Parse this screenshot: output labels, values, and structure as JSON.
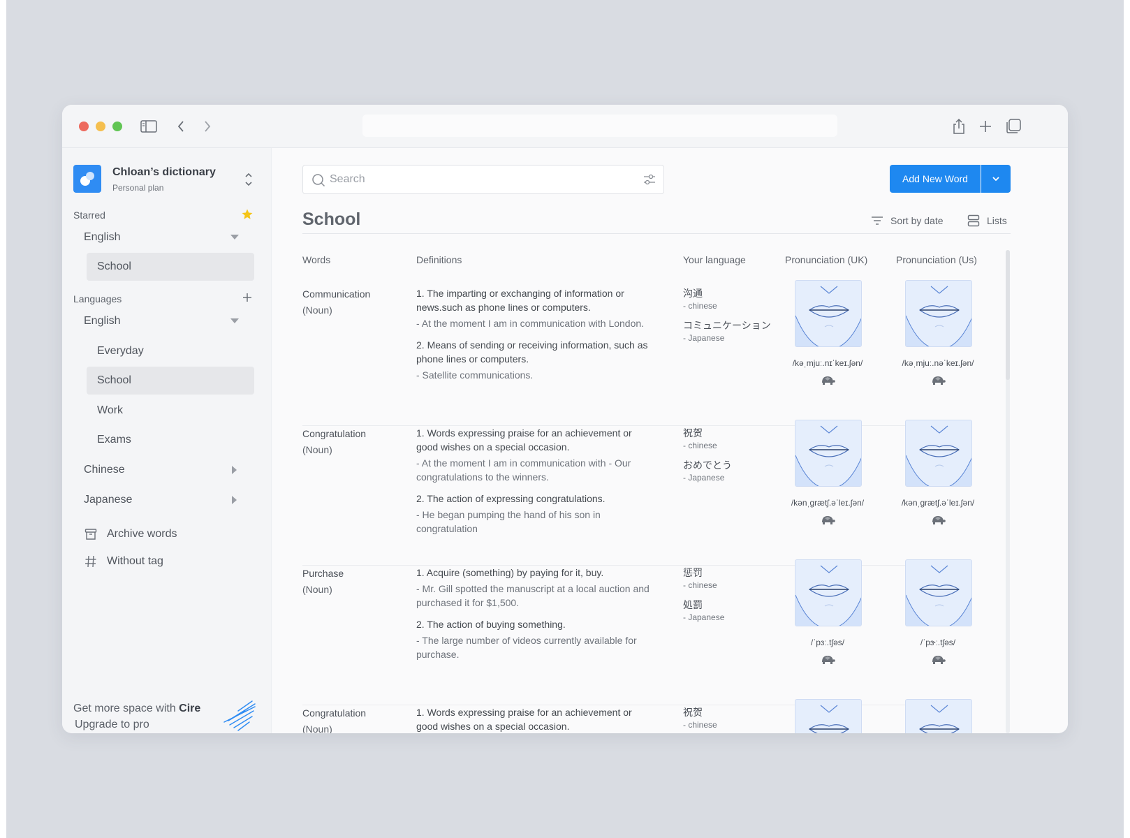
{
  "workspace": {
    "name": "Chloan’s dictionary",
    "plan": "Personal plan"
  },
  "sidebar": {
    "starred_label": "Starred",
    "starred_lang": "English",
    "starred_list": "School",
    "languages_label": "Languages",
    "lang_english": "English",
    "english_lists": [
      "Everyday",
      "School",
      "Work",
      "Exams"
    ],
    "lang_chinese": "Chinese",
    "lang_japanese": "Japanese",
    "archive": "Archive words",
    "without_tag": "Without tag",
    "upgrade_text": "Get more space with ",
    "upgrade_brand": "Cire",
    "upgrade_link": "Upgrade to pro"
  },
  "toolbar": {
    "search_placeholder": "Search",
    "add_word": "Add New Word"
  },
  "page": {
    "title": "School",
    "sort": "Sort by date",
    "lists": "Lists"
  },
  "columns": [
    "Words",
    "Definitions",
    "Your language",
    "Pronunciation (UK)",
    "Pronunciation (Us)"
  ],
  "rows": [
    {
      "word": "Communication",
      "pos": "(Noun)",
      "defs": [
        {
          "main": "1. The imparting or exchanging of information or news.such as phone lines or computers.",
          "ex": "- At the moment I am in communication with London."
        },
        {
          "main": "2. Means of sending or receiving information, such as phone lines or computers.",
          "ex": "- Satellite communications."
        }
      ],
      "trans": [
        {
          "word": "沟通",
          "lang": "- chinese"
        },
        {
          "word": "コミュニケーション",
          "lang": "- Japanese"
        }
      ],
      "ipa_uk": "/kəˌmjuː.nɪˈkeɪ.ʃən/",
      "ipa_us": "/kəˌmjuː.nəˈkeɪ.ʃən/"
    },
    {
      "word": "Congratulation",
      "pos": "(Noun)",
      "defs": [
        {
          "main": "1. Words expressing praise for an achievement or good wishes on a special occasion.",
          "ex": "- At the moment I am in communication with - Our congratulations to the winners."
        },
        {
          "main": "2. The action of expressing congratulations.",
          "ex": "- He began pumping the hand of his son in congratulation"
        }
      ],
      "trans": [
        {
          "word": "祝贺",
          "lang": "- chinese"
        },
        {
          "word": "おめでとう",
          "lang": "- Japanese"
        }
      ],
      "ipa_uk": "/kənˌɡrætʃ.əˈleɪ.ʃən/",
      "ipa_us": "/kənˌɡrætʃ.əˈleɪ.ʃən/"
    },
    {
      "word": "Purchase",
      "pos": "(Noun)",
      "defs": [
        {
          "main": "1. Acquire (something) by paying for it, buy.",
          "ex": "- Mr. Gill spotted the manuscript at a local auction and purchased it for $1,500."
        },
        {
          "main": "2. The action of buying something.",
          "ex": "- The large number of videos currently available for purchase."
        }
      ],
      "trans": [
        {
          "word": "惩罚",
          "lang": "- chinese"
        },
        {
          "word": "処罰",
          "lang": "- Japanese"
        }
      ],
      "ipa_uk": "/ˈpɜː.tʃəs/",
      "ipa_us": "/ˈpɝː.tʃəs/"
    },
    {
      "word": "Congratulation",
      "pos": "(Noun)",
      "defs": [
        {
          "main": "1. Words expressing praise for an achievement or good wishes on a special occasion.",
          "ex": ""
        }
      ],
      "trans": [
        {
          "word": "祝贺",
          "lang": "- chinese"
        }
      ],
      "ipa_uk": "",
      "ipa_us": ""
    }
  ],
  "colors": {
    "accent": "#1e88f0",
    "star": "#f5c518",
    "background": "#d9dce2"
  }
}
